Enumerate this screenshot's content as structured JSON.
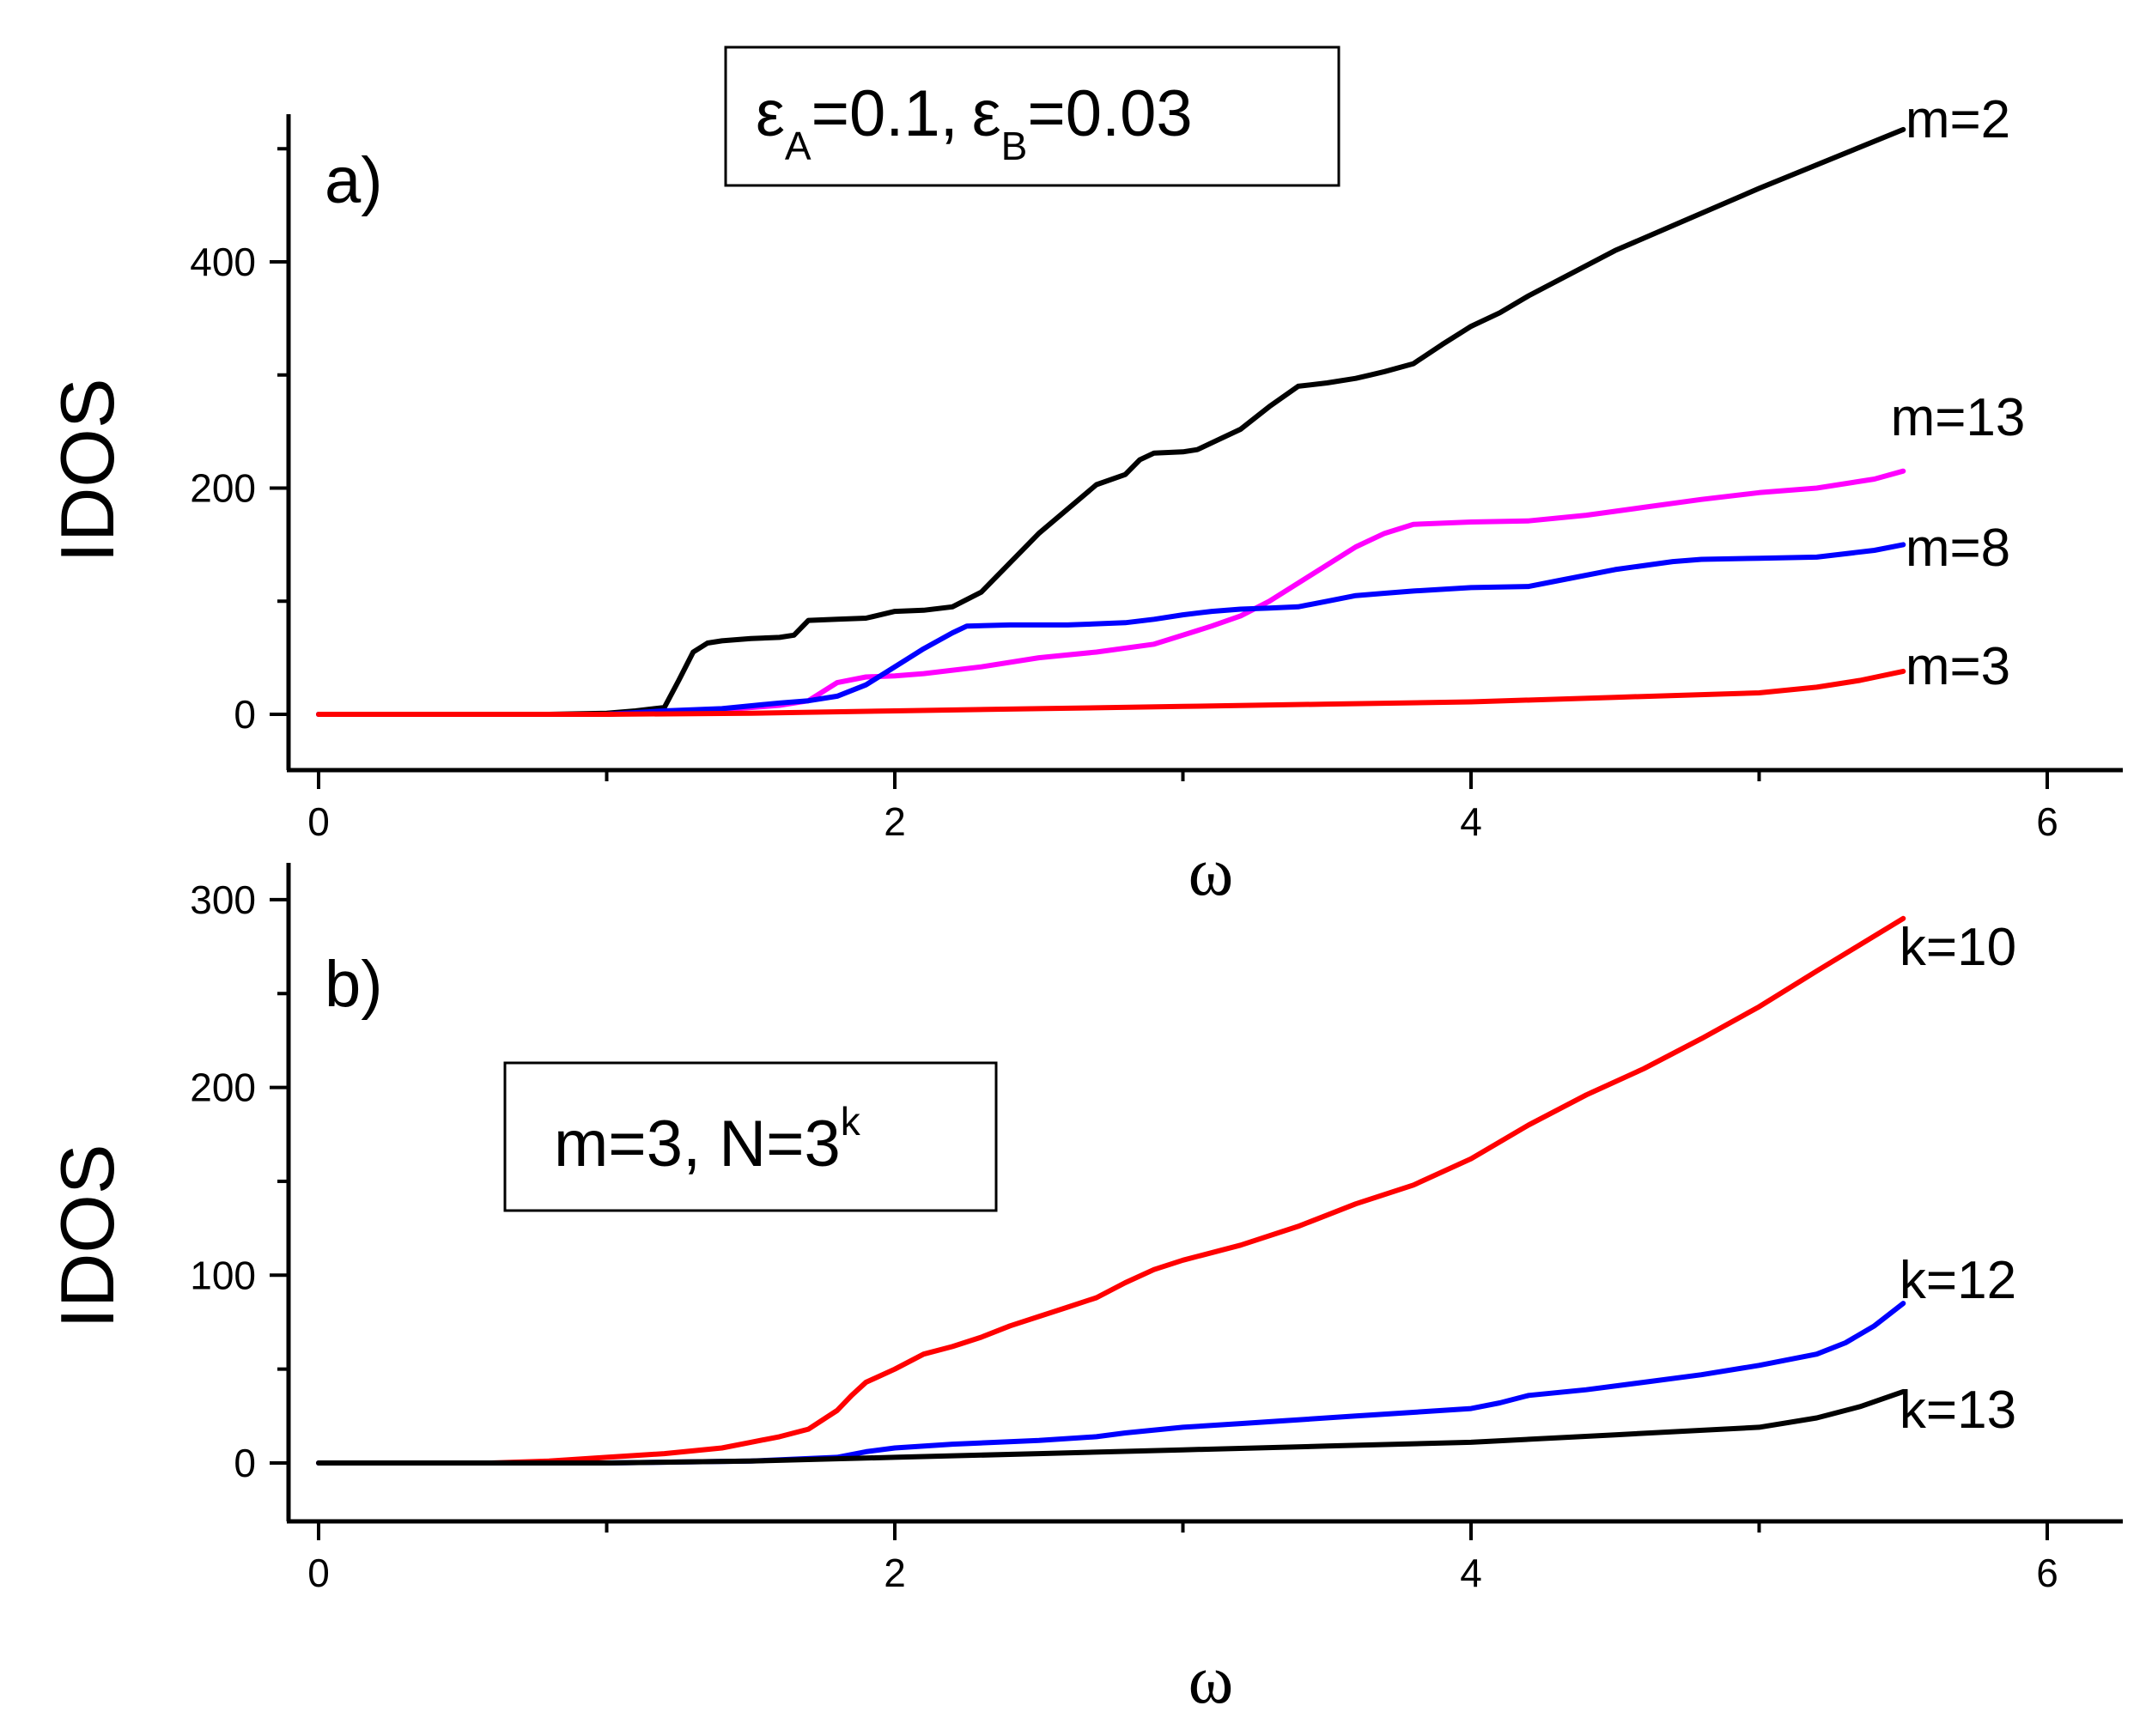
{
  "chart_data": [
    {
      "type": "line",
      "panel_label": "a)",
      "xlabel": "ω",
      "ylabel": "IDOS",
      "xlim": [
        -0.1,
        6.5
      ],
      "ylim": [
        -50,
        550
      ],
      "xticks": [
        0,
        2,
        4,
        6
      ],
      "xtick_labels": [
        "0",
        "2",
        "4",
        "6"
      ],
      "yticks": [
        0,
        200,
        400
      ],
      "ytick_labels": [
        "0",
        "200",
        "400"
      ],
      "annotation": {
        "eps_a_symbol": "ε",
        "eps_a_sub": "A",
        "eps_a_value": "=0.1,",
        "eps_b_symbol": "ε",
        "eps_b_sub": "B",
        "eps_b_value": "=0.03"
      },
      "series": [
        {
          "name": "m=2",
          "color": "#000000",
          "x": [
            0,
            0.8,
            1.0,
            1.1,
            1.2,
            1.25,
            1.3,
            1.35,
            1.4,
            1.5,
            1.6,
            1.65,
            1.7,
            1.8,
            1.9,
            1.95,
            2.0,
            2.1,
            2.2,
            2.3,
            2.5,
            2.7,
            2.8,
            2.85,
            2.9,
            3.0,
            3.05,
            3.1,
            3.2,
            3.3,
            3.4,
            3.5,
            3.6,
            3.65,
            3.7,
            3.8,
            3.9,
            4.0,
            4.1,
            4.2,
            4.5,
            5.0,
            5.5
          ],
          "y": [
            0,
            0,
            1,
            3,
            6,
            30,
            55,
            63,
            65,
            67,
            68,
            70,
            83,
            84,
            85,
            88,
            91,
            92,
            95,
            108,
            160,
            203,
            212,
            225,
            231,
            232,
            234,
            240,
            252,
            272,
            290,
            293,
            297,
            300,
            303,
            310,
            327,
            343,
            355,
            370,
            410,
            465,
            517
          ]
        },
        {
          "name": "m=13",
          "color": "#ff00ff",
          "x": [
            0,
            1.0,
            1.2,
            1.4,
            1.6,
            1.7,
            1.8,
            1.9,
            2.0,
            2.1,
            2.3,
            2.5,
            2.7,
            2.9,
            3.0,
            3.1,
            3.2,
            3.3,
            3.5,
            3.6,
            3.7,
            3.8,
            4.0,
            4.2,
            4.4,
            4.6,
            4.8,
            5.0,
            5.2,
            5.4,
            5.5
          ],
          "y": [
            0,
            0,
            2,
            4,
            8,
            12,
            28,
            33,
            34,
            36,
            42,
            50,
            55,
            62,
            70,
            78,
            87,
            100,
            132,
            148,
            160,
            168,
            170,
            171,
            176,
            183,
            190,
            196,
            200,
            208,
            215
          ]
        },
        {
          "name": "m=8",
          "color": "#0000ff",
          "x": [
            0,
            1.0,
            1.2,
            1.4,
            1.6,
            1.7,
            1.8,
            1.9,
            2.0,
            2.1,
            2.2,
            2.25,
            2.4,
            2.6,
            2.8,
            2.9,
            3.0,
            3.1,
            3.2,
            3.3,
            3.4,
            3.5,
            3.6,
            3.7,
            3.8,
            4.0,
            4.2,
            4.3,
            4.5,
            4.7,
            4.8,
            5.0,
            5.2,
            5.4,
            5.5
          ],
          "y": [
            0,
            0,
            3,
            5,
            10,
            12,
            16,
            26,
            42,
            58,
            72,
            78,
            79,
            79,
            81,
            84,
            88,
            91,
            93,
            94,
            95,
            100,
            105,
            107,
            109,
            112,
            113,
            118,
            128,
            135,
            137,
            138,
            139,
            145,
            150
          ]
        },
        {
          "name": "m=3",
          "color": "#ff0000",
          "x": [
            0,
            1.0,
            1.5,
            2.0,
            2.5,
            3.0,
            3.5,
            4.0,
            4.5,
            5.0,
            5.2,
            5.35,
            5.5
          ],
          "y": [
            0,
            0,
            1,
            3,
            5,
            7,
            9,
            11,
            15,
            19,
            24,
            30,
            38
          ]
        }
      ]
    },
    {
      "type": "line",
      "panel_label": "b)",
      "xlabel": "ω",
      "ylabel": "IDOS",
      "xlim": [
        -0.1,
        6.5
      ],
      "ylim": [
        -30,
        320
      ],
      "xticks": [
        0,
        2,
        4,
        6
      ],
      "xtick_labels": [
        "0",
        "2",
        "4",
        "6"
      ],
      "yticks": [
        0,
        100,
        200,
        300
      ],
      "ytick_labels": [
        "0",
        "100",
        "200",
        "300"
      ],
      "annotation": {
        "text": "m=3, N=3",
        "sup": "k"
      },
      "series": [
        {
          "name": "k=10",
          "color": "#ff0000",
          "x": [
            0,
            0.6,
            0.8,
            1.0,
            1.2,
            1.4,
            1.5,
            1.6,
            1.7,
            1.8,
            1.85,
            1.9,
            2.0,
            2.1,
            2.2,
            2.3,
            2.4,
            2.5,
            2.6,
            2.7,
            2.8,
            2.9,
            3.0,
            3.2,
            3.4,
            3.5,
            3.6,
            3.8,
            4.0,
            4.2,
            4.4,
            4.6,
            4.8,
            5.0,
            5.2,
            5.5
          ],
          "y": [
            0,
            0,
            1,
            3,
            5,
            8,
            11,
            14,
            18,
            28,
            36,
            43,
            50,
            58,
            62,
            67,
            73,
            78,
            83,
            88,
            96,
            103,
            108,
            116,
            126,
            132,
            138,
            148,
            162,
            180,
            196,
            210,
            226,
            243,
            262,
            290
          ]
        },
        {
          "name": "k=12",
          "color": "#0000ff",
          "x": [
            0,
            1.0,
            1.5,
            1.8,
            1.9,
            2.0,
            2.2,
            2.5,
            2.7,
            2.8,
            3.0,
            3.2,
            3.4,
            3.6,
            3.8,
            4.0,
            4.1,
            4.2,
            4.4,
            4.6,
            4.8,
            5.0,
            5.2,
            5.3,
            5.4,
            5.5
          ],
          "y": [
            0,
            0,
            1,
            3,
            6,
            8,
            10,
            12,
            14,
            16,
            19,
            21,
            23,
            25,
            27,
            29,
            32,
            36,
            39,
            43,
            47,
            52,
            58,
            64,
            73,
            85
          ]
        },
        {
          "name": "k=13",
          "color": "#000000",
          "x": [
            0,
            1.0,
            1.5,
            2.0,
            2.5,
            3.0,
            3.5,
            4.0,
            4.5,
            5.0,
            5.2,
            5.35,
            5.5
          ],
          "y": [
            0,
            0,
            1,
            3,
            5,
            7,
            9,
            11,
            15,
            19,
            24,
            30,
            38
          ]
        }
      ]
    }
  ]
}
